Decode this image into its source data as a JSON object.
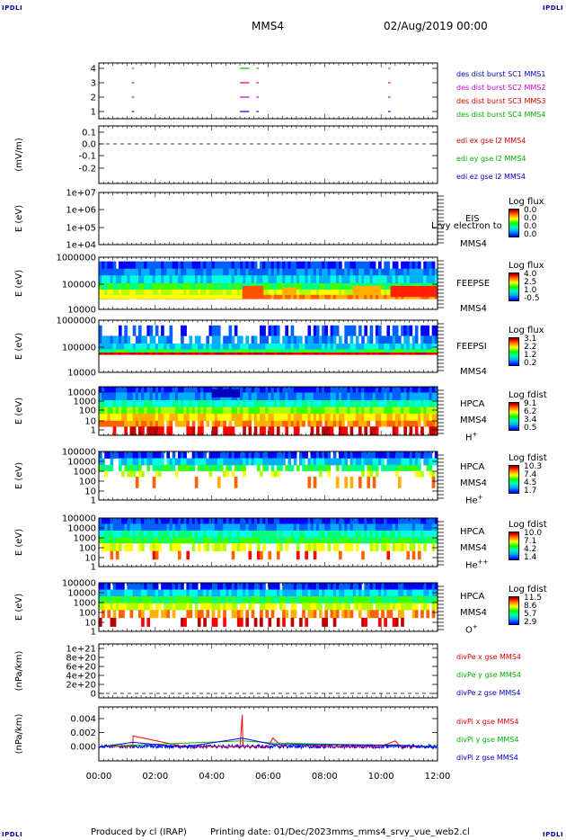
{
  "header": {
    "corner_tl": "IPDLI",
    "corner_tr": "IPDLI",
    "corner_bl": "IPDLI",
    "corner_br": "IPDLI",
    "spacecraft": "MMS4",
    "datetime": "02/Aug/2019 00:00"
  },
  "footer": {
    "produced_by": "Produced by cl (IRAP)",
    "printing_date": "Printing date: 01/Dec/2023",
    "script_name": "mms_mms4_srvy_vue_web2.cl"
  },
  "colors": {
    "red": "#ff0000",
    "green": "#00c000",
    "blue": "#0000ff",
    "magenta": "#cc00cc",
    "legend_red": "#e00000",
    "legend_green": "#00b000",
    "legend_blue": "#0000c0"
  },
  "panel_burst": {
    "ticks": [
      "4",
      "3",
      "2",
      "1"
    ],
    "legend": [
      "des dist burst SC1 MMS1",
      "des dist burst SC2 MMS2",
      "des dist burst SC3 MMS3",
      "des dist burst SC4 MMS4"
    ]
  },
  "panel_edi": {
    "ylabel": "(mV/m)",
    "ticks": [
      "0.1",
      "0.0",
      "-0.1",
      "-0.2"
    ],
    "legend": [
      "edi ex gse l2 MMS4",
      "edi ey gse l2 MMS4",
      "edi ez gse l2 MMS4"
    ]
  },
  "panel_eis": {
    "ylabel": "E (eV)",
    "ticks": [
      "1e+07",
      "1e+06",
      "1e+05",
      "1e+04"
    ],
    "label1": "EIS",
    "label2": "MMS4",
    "overlay": "Lrvy electron to",
    "cb_title": "Log flux",
    "cb_ticks": [
      "0.0",
      "0.0",
      "0.0",
      "0.0"
    ]
  },
  "panel_feepse": {
    "ylabel": "E (eV)",
    "ticks": [
      "1000000",
      "100000",
      "10000"
    ],
    "label1": "FEEPSE",
    "label2": "MMS4",
    "cb_title": "Log flux",
    "cb_ticks": [
      "4.0",
      "2.5",
      "1.0",
      "-0.5"
    ]
  },
  "panel_feepsi": {
    "ylabel": "E (eV)",
    "ticks": [
      "1000000",
      "100000",
      "10000"
    ],
    "label1": "FEEPSI",
    "label2": "MMS4",
    "cb_title": "Log flux",
    "cb_ticks": [
      "3.1",
      "2.2",
      "1.2",
      "0.2"
    ]
  },
  "panel_hpca_h": {
    "ylabel": "E (eV)",
    "ticks": [
      "10000",
      "1000",
      "100",
      "10",
      "1"
    ],
    "label1": "HPCA",
    "label2": "MMS4",
    "species": "H",
    "charge": "+",
    "cb_title": "Log fdist",
    "cb_ticks": [
      "9.1",
      "6.2",
      "3.4",
      "0.5"
    ]
  },
  "panel_hpca_he": {
    "ylabel": "E (eV)",
    "ticks": [
      "100000",
      "10000",
      "1000",
      "100",
      "10",
      "1"
    ],
    "label1": "HPCA",
    "label2": "MMS4",
    "species": "He",
    "charge": "+",
    "cb_title": "Log fdist",
    "cb_ticks": [
      "10.3",
      "7.4",
      "4.5",
      "1.7"
    ]
  },
  "panel_hpca_hepp": {
    "ylabel": "E (eV)",
    "ticks": [
      "100000",
      "10000",
      "1000",
      "100",
      "10",
      "1"
    ],
    "label1": "HPCA",
    "label2": "MMS4",
    "species": "He",
    "charge": "++",
    "cb_title": "Log fdist",
    "cb_ticks": [
      "10.0",
      "7.1",
      "4.2",
      "1.4"
    ]
  },
  "panel_hpca_o": {
    "ylabel": "E (eV)",
    "ticks": [
      "100000",
      "10000",
      "1000",
      "100",
      "10",
      "1"
    ],
    "label1": "HPCA",
    "label2": "MMS4",
    "species": "O",
    "charge": "+",
    "cb_title": "Log fdist",
    "cb_ticks": [
      "11.5",
      "8.6",
      "5.7",
      "2.9"
    ]
  },
  "panel_divpe": {
    "ylabel": "(nPa/km)",
    "ticks": [
      "1e+21",
      "8e+20",
      "6e+20",
      "4e+20",
      "2e+20",
      "0"
    ],
    "legend": [
      "divPe x gse MMS4",
      "divPe y gse MMS4",
      "divPe z gse MMS4"
    ]
  },
  "panel_divpi": {
    "ylabel": "(nPa/km)",
    "ticks": [
      "0.004",
      "0.002",
      "0.000"
    ],
    "legend": [
      "divPi x gse MMS4",
      "divPi y gse MMS4",
      "divPi z gse MMS4"
    ]
  },
  "time_axis": [
    "00:00",
    "02:00",
    "04:00",
    "06:00",
    "08:00",
    "10:00",
    "12:00"
  ],
  "chart_data": [
    {
      "type": "line",
      "title": "",
      "ylabel": "(nPa/km)",
      "xlabel": "",
      "x_range": [
        "00:00",
        "12:00"
      ],
      "ylim": [
        -0.0015,
        0.005
      ],
      "grid": false,
      "legend_placement": "right",
      "series": [
        {
          "name": "divPi x gse MMS4",
          "color": "#ff0000",
          "x": [
            "00:00",
            "01:12",
            "01:13",
            "03:00",
            "05:00",
            "05:05",
            "05:06",
            "05:07",
            "06:00",
            "06:10",
            "06:30",
            "06:40",
            "08:00",
            "10:00",
            "10:30",
            "10:40",
            "12:00"
          ],
          "y": [
            0.0,
            0.0,
            0.0015,
            0.0,
            0.0,
            0.0045,
            0.001,
            0.0,
            0.0,
            0.0012,
            0.0,
            0.0005,
            0.0,
            0.0,
            0.0008,
            0.0,
            0.0
          ]
        },
        {
          "name": "divPi y gse MMS4",
          "color": "#00c000",
          "x": [
            "00:00",
            "05:05",
            "06:10",
            "12:00"
          ],
          "y": [
            0.0,
            0.0008,
            0.0005,
            0.0
          ]
        },
        {
          "name": "divPi z gse MMS4",
          "color": "#0000ff",
          "x": [
            "00:00",
            "01:12",
            "03:00",
            "05:05",
            "06:10",
            "10:30",
            "12:00"
          ],
          "y": [
            -0.0001,
            0.0006,
            -0.0001,
            0.0012,
            0.0003,
            0.0002,
            -0.0001
          ]
        }
      ]
    },
    {
      "type": "line",
      "title": "",
      "ylabel": "(mV/m)",
      "xlabel": "",
      "ylim": [
        -0.25,
        0.12
      ],
      "grid": false,
      "reference_line": 0.0,
      "series": []
    },
    {
      "type": "line",
      "title": "",
      "ylabel": "(nPa/km)",
      "xlabel": "",
      "ylim": [
        0,
        1e+21
      ],
      "grid": false,
      "reference_line": 0,
      "series": []
    },
    {
      "type": "scatter",
      "title": "",
      "ylabel": "",
      "ylim": [
        0.5,
        4.5
      ],
      "categories": [
        "1",
        "2",
        "3",
        "4"
      ],
      "series": [
        {
          "name": "des dist burst SC1 MMS1",
          "color": "#00c000",
          "y": 4,
          "x_start": [
            "01:10",
            "05:00",
            "05:35",
            "10:15"
          ],
          "x_end": [
            "01:15",
            "05:20",
            "05:40",
            "10:20"
          ]
        },
        {
          "name": "des dist burst SC2 MMS2",
          "color": "#ff0000",
          "y": 3,
          "x_start": [
            "01:10",
            "05:00",
            "05:35",
            "10:15"
          ],
          "x_end": [
            "01:15",
            "05:20",
            "05:40",
            "10:20"
          ]
        },
        {
          "name": "des dist burst SC3 MMS3",
          "color": "#cc00cc",
          "y": 2,
          "x_start": [
            "01:10",
            "05:00",
            "05:35",
            "10:15"
          ],
          "x_end": [
            "01:15",
            "05:20",
            "05:40",
            "10:20"
          ]
        },
        {
          "name": "des dist burst SC4 MMS4",
          "color": "#0000ff",
          "y": 1,
          "x_start": [
            "01:10",
            "05:00",
            "05:35",
            "10:15"
          ],
          "x_end": [
            "01:15",
            "05:20",
            "05:40",
            "10:20"
          ]
        }
      ]
    }
  ]
}
